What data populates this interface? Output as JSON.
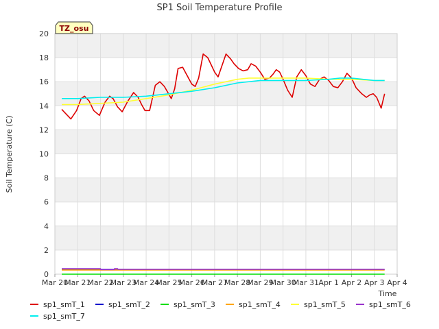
{
  "chart_data": {
    "type": "line",
    "title": "SP1 Soil Temperature Profile",
    "xlabel": "Time",
    "ylabel": "Soil Temperature (C)",
    "annotation": "TZ_osu",
    "ylim": [
      0,
      20
    ],
    "yticks": [
      0,
      2,
      4,
      6,
      8,
      10,
      12,
      14,
      16,
      18,
      20
    ],
    "xlim": [
      0,
      15
    ],
    "xticks": [
      0,
      1,
      2,
      3,
      4,
      5,
      6,
      7,
      8,
      9,
      10,
      11,
      12,
      13,
      14,
      15
    ],
    "xtick_labels": [
      "Mar 20",
      "Mar 21",
      "Mar 22",
      "Mar 23",
      "Mar 24",
      "Mar 25",
      "Mar 26",
      "Mar 27",
      "Mar 28",
      "Mar 29",
      "Mar 30",
      "Mar 31",
      "Apr 1",
      "Apr 2",
      "Apr 3",
      "Apr 4"
    ],
    "grid": true,
    "legend_position": "bottom",
    "series": [
      {
        "name": "sp1_smT_1",
        "color": "#dd0000",
        "x": [
          0.3,
          0.5,
          0.7,
          0.95,
          1.15,
          1.3,
          1.5,
          1.7,
          1.95,
          2.2,
          2.4,
          2.55,
          2.75,
          2.95,
          3.2,
          3.45,
          3.65,
          3.8,
          3.95,
          4.15,
          4.4,
          4.6,
          4.8,
          4.95,
          5.1,
          5.25,
          5.4,
          5.6,
          5.8,
          6.0,
          6.15,
          6.3,
          6.5,
          6.7,
          6.85,
          7.0,
          7.15,
          7.3,
          7.5,
          7.7,
          7.85,
          8.05,
          8.25,
          8.45,
          8.6,
          8.8,
          9.0,
          9.2,
          9.4,
          9.55,
          9.7,
          9.85,
          10.0,
          10.2,
          10.4,
          10.6,
          10.8,
          11.0,
          11.2,
          11.4,
          11.6,
          11.8,
          12.0,
          12.2,
          12.4,
          12.6,
          12.8,
          13.0,
          13.2,
          13.45,
          13.65,
          13.8,
          13.95,
          14.1,
          14.3,
          14.45
        ],
        "values": [
          13.7,
          13.3,
          12.9,
          13.6,
          14.6,
          14.8,
          14.4,
          13.6,
          13.2,
          14.3,
          14.8,
          14.6,
          13.9,
          13.5,
          14.4,
          15.1,
          14.7,
          14.1,
          13.6,
          13.6,
          15.7,
          16.0,
          15.6,
          15.1,
          14.6,
          15.4,
          17.1,
          17.2,
          16.5,
          15.8,
          15.6,
          16.3,
          18.3,
          18.0,
          17.4,
          16.8,
          16.4,
          17.2,
          18.3,
          17.9,
          17.5,
          17.1,
          16.9,
          17.0,
          17.5,
          17.3,
          16.8,
          16.2,
          16.3,
          16.6,
          17.0,
          16.8,
          16.2,
          15.3,
          14.7,
          16.4,
          17.0,
          16.5,
          15.8,
          15.6,
          16.2,
          16.4,
          16.1,
          15.6,
          15.5,
          16.0,
          16.7,
          16.3,
          15.5,
          15.0,
          14.7,
          14.9,
          15.0,
          14.7,
          13.8,
          15.0
        ]
      },
      {
        "name": "sp1_smT_2",
        "color": "#0000cc",
        "x": [
          0.3,
          14.45
        ],
        "values": [
          0.4,
          0.4
        ]
      },
      {
        "name": "sp1_smT_3",
        "color": "#00dd00",
        "x": [
          0.3,
          14.45
        ],
        "values": [
          0.0,
          0.0
        ]
      },
      {
        "name": "sp1_smT_4",
        "color": "#ffa500",
        "x": [
          0.3,
          14.45
        ],
        "values": [
          0.35,
          0.35
        ]
      },
      {
        "name": "sp1_smT_5",
        "color": "#ffff33",
        "x": [
          0.3,
          1.0,
          2.0,
          3.0,
          4.0,
          5.0,
          6.0,
          7.0,
          8.0,
          8.5,
          9.0,
          10.0,
          11.0,
          12.0,
          13.0,
          14.0,
          14.45
        ],
        "values": [
          14.1,
          14.1,
          14.2,
          14.3,
          14.6,
          14.9,
          15.3,
          15.8,
          16.2,
          16.3,
          16.3,
          16.3,
          16.3,
          16.2,
          16.2,
          16.1,
          16.1
        ]
      },
      {
        "name": "sp1_smT_6",
        "color": "#9932cc",
        "x": [
          0.3,
          2.0,
          2.01,
          2.6,
          2.61,
          2.75,
          2.76,
          14.45
        ],
        "values": [
          0.45,
          0.45,
          0.38,
          0.38,
          0.45,
          0.45,
          0.4,
          0.4
        ]
      },
      {
        "name": "sp1_smT_7",
        "color": "#00eeee",
        "x": [
          0.3,
          1.0,
          2.0,
          3.0,
          4.0,
          5.0,
          6.0,
          7.0,
          8.0,
          9.0,
          10.0,
          11.0,
          12.0,
          12.5,
          13.0,
          13.5,
          14.0,
          14.45
        ],
        "values": [
          14.6,
          14.6,
          14.7,
          14.7,
          14.8,
          15.0,
          15.2,
          15.5,
          15.9,
          16.1,
          16.1,
          16.1,
          16.2,
          16.3,
          16.3,
          16.2,
          16.1,
          16.1
        ]
      }
    ]
  }
}
